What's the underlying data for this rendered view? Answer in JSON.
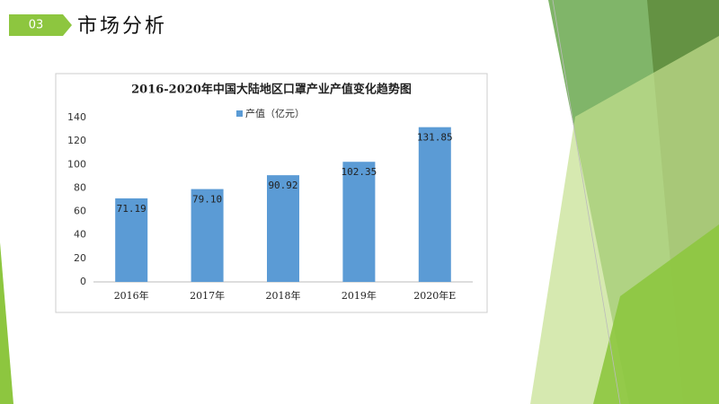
{
  "slide": {
    "number": "03",
    "title": "市场分析"
  },
  "chart_data": {
    "type": "bar",
    "title": "2016-2020年中国大陆地区口罩产业产值变化趋势图",
    "categories": [
      "2016年",
      "2017年",
      "2018年",
      "2019年",
      "2020年E"
    ],
    "series": [
      {
        "name": "产值（亿元）",
        "color": "#5b9bd5",
        "values": [
          71.19,
          79.1,
          90.92,
          102.35,
          131.85
        ],
        "value_labels": [
          "71.19",
          "79.10",
          "90.92",
          "102.35",
          "131.85"
        ]
      }
    ],
    "ylim": [
      0,
      140
    ],
    "yticks": [
      0,
      20,
      40,
      60,
      80,
      100,
      120,
      140
    ],
    "grid": false,
    "legend": "top"
  }
}
